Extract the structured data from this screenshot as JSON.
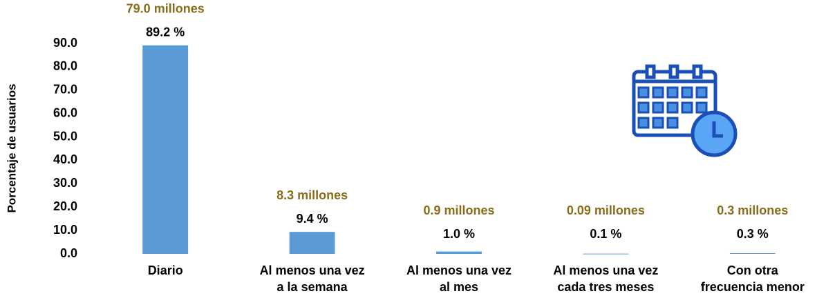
{
  "chart_data": {
    "type": "bar",
    "ylabel": "Porcentaje de usuarios",
    "categories": [
      "Diario",
      "Al menos una vez\na la semana",
      "Al menos una vez\nal mes",
      "Al menos una vez\ncada tres meses",
      "Con otra\nfrecuencia menor"
    ],
    "values": [
      89.2,
      9.4,
      1.0,
      0.1,
      0.3
    ],
    "value_labels": [
      "89.2 %",
      "9.4 %",
      "1.0 %",
      "0.1 %",
      "0.3 %"
    ],
    "annotations": [
      "79.0 millones",
      "8.3 millones",
      "0.9 millones",
      "0.09 millones",
      "0.3 millones"
    ],
    "color": "#5b9bd5",
    "annotation_color": "#8a6d1a",
    "ylim": [
      0,
      90
    ],
    "yticks": [
      {
        "value": 0,
        "label": "0.0"
      },
      {
        "value": 10,
        "label": "10.0"
      },
      {
        "value": 20,
        "label": "20.0"
      },
      {
        "value": 30,
        "label": "30.0"
      },
      {
        "value": 40,
        "label": "40.0"
      },
      {
        "value": 50,
        "label": "50.0"
      },
      {
        "value": 60,
        "label": "60.0"
      },
      {
        "value": 70,
        "label": "70.0"
      },
      {
        "value": 80,
        "label": "80.0"
      },
      {
        "value": 90,
        "label": "90.0"
      }
    ],
    "grid": false
  }
}
